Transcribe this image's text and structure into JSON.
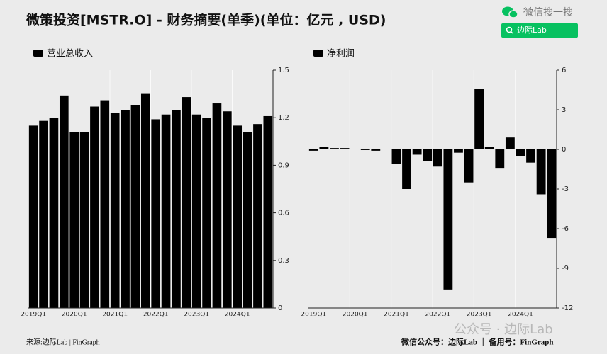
{
  "header": {
    "title": "微策投资[MSTR.O] - 财务摘要(单季)(单位：亿元 , USD)",
    "search_label": "微信搜一搜",
    "search_button": "边际Lab"
  },
  "chart_data": [
    {
      "type": "bar",
      "series": [
        {
          "name": "营业总收入",
          "color": "#000000",
          "values": [
            1.15,
            1.18,
            1.2,
            1.34,
            1.11,
            1.11,
            1.27,
            1.31,
            1.23,
            1.25,
            1.28,
            1.35,
            1.19,
            1.22,
            1.25,
            1.33,
            1.22,
            1.2,
            1.29,
            1.24,
            1.15,
            1.11,
            1.16,
            1.21
          ]
        }
      ],
      "categories": [
        "2019Q1",
        null,
        null,
        null,
        "2020Q1",
        null,
        null,
        null,
        "2021Q1",
        null,
        null,
        null,
        "2022Q1",
        null,
        null,
        null,
        "2023Q1",
        null,
        null,
        null,
        "2024Q1",
        null,
        null,
        null
      ],
      "ylim": [
        0,
        1.5
      ],
      "yticks": [
        0,
        0.3,
        0.6,
        0.9,
        1.2,
        1.5
      ],
      "grid": "x"
    },
    {
      "type": "bar",
      "series": [
        {
          "name": "净利润",
          "color": "#000000",
          "values": [
            -0.1,
            0.2,
            0.1,
            0.1,
            0,
            -0.05,
            -0.1,
            0.03,
            -1.1,
            -3.0,
            -0.4,
            -0.9,
            -1.3,
            -10.6,
            -0.25,
            -2.5,
            4.6,
            0.2,
            -1.4,
            0.9,
            -0.5,
            -1.0,
            -3.4,
            -6.7
          ]
        }
      ],
      "categories": [
        "2019Q1",
        null,
        null,
        null,
        "2020Q1",
        null,
        null,
        null,
        "2021Q1",
        null,
        null,
        null,
        "2022Q1",
        null,
        null,
        null,
        "2023Q1",
        null,
        null,
        null,
        "2024Q1",
        null,
        null,
        null
      ],
      "ylim": [
        -12,
        6
      ],
      "yticks": [
        -12,
        -9,
        -6,
        -3,
        0,
        3,
        6
      ],
      "grid": "x"
    }
  ],
  "footer": {
    "source": "来源:边际Lab | FinGraph",
    "accounts": "微信公众号：边际Lab ｜ 备用号：FinGraph",
    "watermark": "公众号 · 边际Lab"
  }
}
